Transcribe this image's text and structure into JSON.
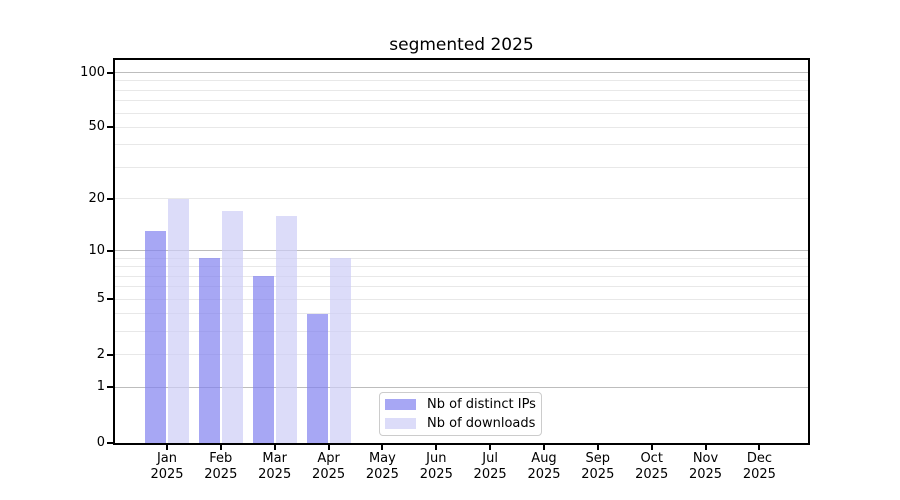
{
  "chart_data": {
    "type": "bar",
    "title": "segmented 2025",
    "x_categories": [
      "Jan",
      "Feb",
      "Mar",
      "Apr",
      "May",
      "Jun",
      "Jul",
      "Aug",
      "Sep",
      "Oct",
      "Nov",
      "Dec"
    ],
    "x_year": "2025",
    "series": [
      {
        "name": "Nb of distinct IPs",
        "color": "#8282f0",
        "opacity": 0.7,
        "values": [
          13,
          9,
          7,
          4,
          0,
          0,
          0,
          0,
          0,
          0,
          0,
          0
        ]
      },
      {
        "name": "Nb of downloads",
        "color": "#cdcdf7",
        "opacity": 0.7,
        "values": [
          20,
          17,
          16,
          9,
          0,
          0,
          0,
          0,
          0,
          0,
          0,
          0
        ]
      }
    ],
    "y_axis": {
      "scale": "log1p-segmented",
      "ticks": [
        0,
        1,
        2,
        5,
        10,
        20,
        50,
        100
      ],
      "range": [
        0,
        117
      ]
    },
    "grid": {
      "major": [
        1,
        10,
        100
      ],
      "minor": [
        2,
        3,
        4,
        5,
        6,
        7,
        8,
        9,
        20,
        30,
        40,
        50,
        60,
        70,
        80,
        90
      ],
      "major_color": "#bdbdbd",
      "minor_color": "#e8e8e8"
    },
    "legend": {
      "position": "lower-center-left",
      "items": [
        "Nb of distinct IPs",
        "Nb of downloads"
      ]
    }
  }
}
